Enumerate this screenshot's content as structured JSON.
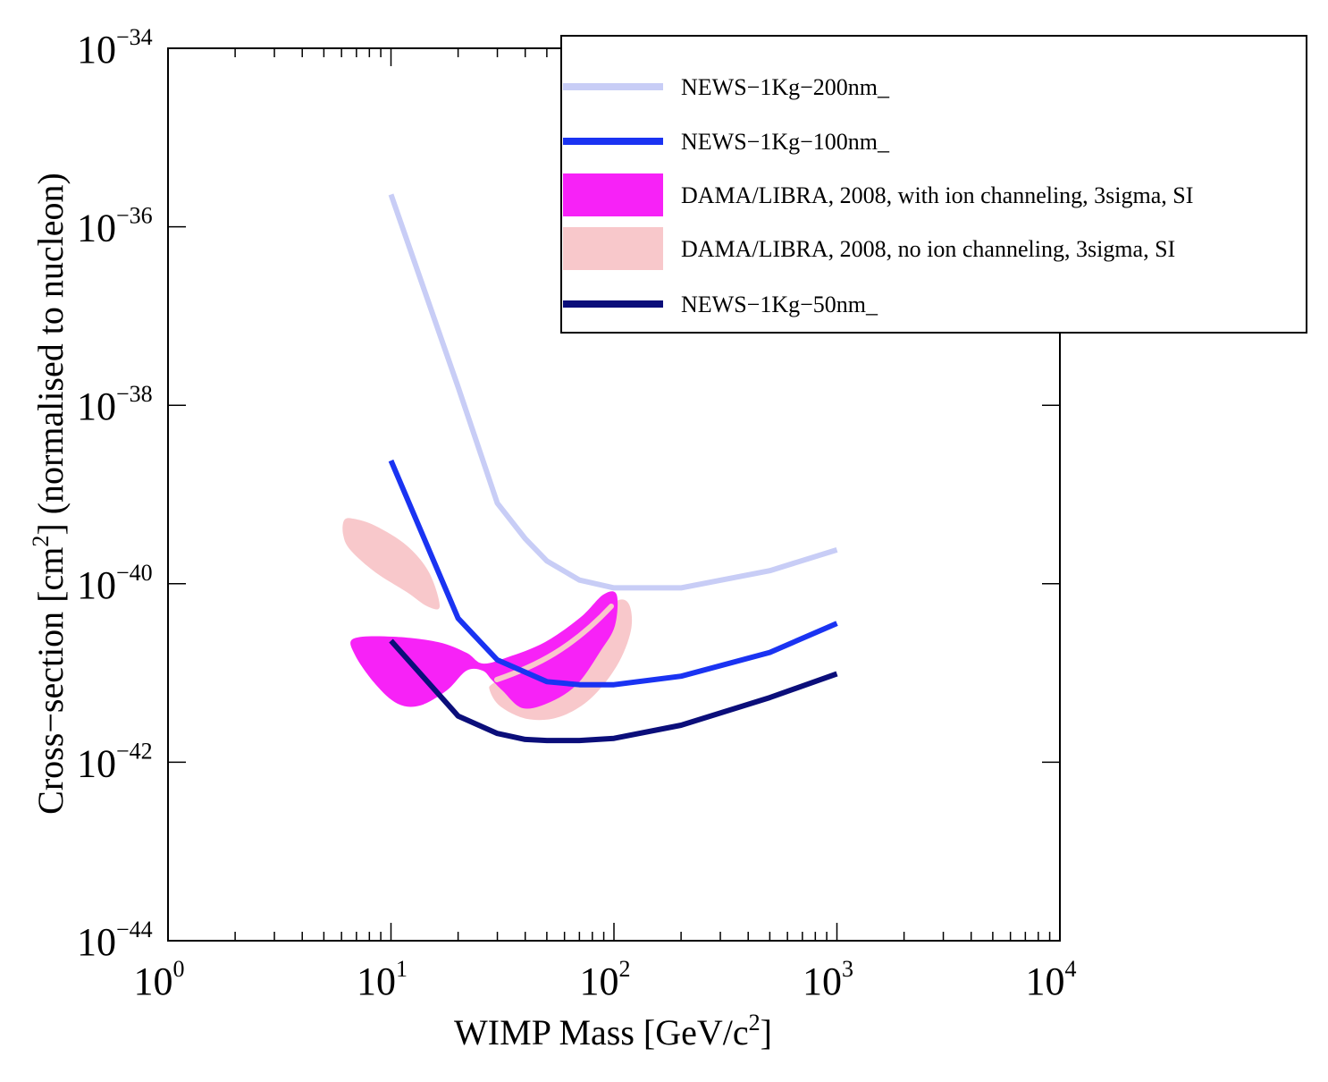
{
  "chart_data": {
    "type": "line",
    "x_scale": "log",
    "y_scale": "log",
    "xlim": [
      1,
      10000
    ],
    "ylim": [
      1e-44,
      1e-34
    ],
    "x_ticks": [
      {
        "base": "10",
        "exp": "0",
        "value": 1
      },
      {
        "base": "10",
        "exp": "1",
        "value": 10
      },
      {
        "base": "10",
        "exp": "2",
        "value": 100
      },
      {
        "base": "10",
        "exp": "3",
        "value": 1000
      },
      {
        "base": "10",
        "exp": "4",
        "value": 10000
      }
    ],
    "y_ticks": [
      {
        "base": "10",
        "exp": "−44",
        "value": 1e-44
      },
      {
        "base": "10",
        "exp": "−42",
        "value": 1e-42
      },
      {
        "base": "10",
        "exp": "−40",
        "value": 1e-40
      },
      {
        "base": "10",
        "exp": "−38",
        "value": 1e-38
      },
      {
        "base": "10",
        "exp": "−36",
        "value": 1e-36
      },
      {
        "base": "10",
        "exp": "−34",
        "value": 1e-34
      }
    ],
    "xlabel": {
      "main": "WIMP Mass [GeV/c",
      "sup": "2",
      "tail": "]"
    },
    "ylabel": {
      "main": "Cross−section [cm",
      "sup": "2",
      "tail": "] (normalised to nucleon)"
    },
    "legend_position": "top-right",
    "series": [
      {
        "name": "NEWS−1Kg−200nm_",
        "kind": "line",
        "color": "#c8cdf6",
        "x": [
          10,
          20,
          30,
          40,
          50,
          70,
          100,
          200,
          500,
          1000
        ],
        "y": [
          2.3e-36,
          1.6e-38,
          8e-40,
          3.2e-40,
          1.8e-40,
          1.1e-40,
          9e-41,
          9e-41,
          1.4e-40,
          2.4e-40
        ]
      },
      {
        "name": "NEWS−1Kg−100nm_",
        "kind": "line",
        "color": "#1a33f2",
        "x": [
          10,
          20,
          30,
          50,
          70,
          100,
          200,
          500,
          1000
        ],
        "y": [
          2.4e-39,
          4.1e-41,
          1.4e-41,
          8e-42,
          7.4e-42,
          7.4e-42,
          9.2e-42,
          1.7e-41,
          3.6e-41
        ]
      },
      {
        "name": "DAMA/LIBRA, 2008, with ion channeling, 3sigma, SI",
        "kind": "region",
        "color": "#f722f7"
      },
      {
        "name": "DAMA/LIBRA, 2008, no ion channeling, 3sigma, SI",
        "kind": "region",
        "color": "#f8c8cb"
      },
      {
        "name": "NEWS−1Kg−50nm_",
        "kind": "line",
        "color": "#0b0e7a",
        "x": [
          10,
          20,
          30,
          40,
          50,
          70,
          100,
          200,
          500,
          1000
        ],
        "y": [
          2.3e-41,
          3.3e-42,
          2.1e-42,
          1.8e-42,
          1.75e-42,
          1.75e-42,
          1.85e-42,
          2.6e-42,
          5.3e-42,
          9.8e-42
        ]
      }
    ]
  }
}
